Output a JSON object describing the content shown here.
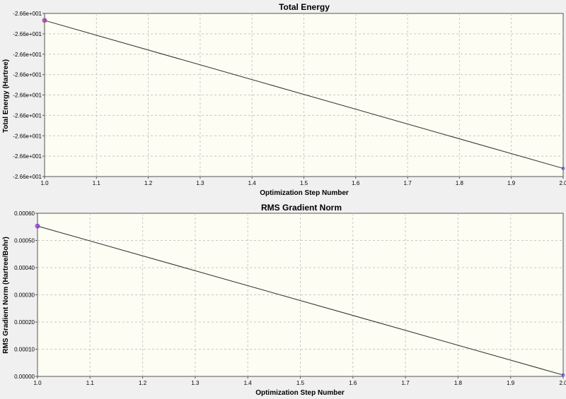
{
  "chart_data": [
    {
      "type": "line",
      "title": "Total Energy",
      "xlabel": "Optimization Step Number",
      "ylabel": "Total Energy (Hartree)",
      "x": [
        1.0,
        2.0
      ],
      "xlim": [
        1.0,
        2.0
      ],
      "xticks": [
        "1.0",
        "1.1",
        "1.2",
        "1.3",
        "1.4",
        "1.5",
        "1.6",
        "1.7",
        "1.8",
        "1.9",
        "2.0"
      ],
      "yticks": [
        "-2.66e+001",
        "-2.66e+001",
        "-2.66e+001",
        "-2.66e+001",
        "-2.66e+001",
        "-2.66e+001",
        "-2.66e+001",
        "-2.66e+001",
        "-2.66e+001"
      ],
      "y_tick_fractions": [
        0.0,
        0.125,
        0.25,
        0.375,
        0.5,
        0.625,
        0.75,
        0.875,
        1.0
      ],
      "y_fractions": [
        0.957,
        0.05
      ],
      "grid": true,
      "legend": "none"
    },
    {
      "type": "line",
      "title": "RMS Gradient Norm",
      "xlabel": "Optimization Step Number",
      "ylabel": "RMS Gradient Norm (Hartree/Bohr)",
      "x": [
        1.0,
        2.0
      ],
      "values": [
        0.000553,
        5e-06
      ],
      "xlim": [
        1.0,
        2.0
      ],
      "ylim": [
        0.0,
        0.0006
      ],
      "xticks": [
        "1.0",
        "1.1",
        "1.2",
        "1.3",
        "1.4",
        "1.5",
        "1.6",
        "1.7",
        "1.8",
        "1.9",
        "2.0"
      ],
      "yticks": [
        "0.00000",
        "0.00010",
        "0.00020",
        "0.00030",
        "0.00040",
        "0.00050",
        "0.00060"
      ],
      "ytick_values": [
        0.0,
        0.0001,
        0.0002,
        0.0003,
        0.0004,
        0.0005,
        0.0006
      ],
      "grid": true,
      "legend": "none"
    }
  ]
}
